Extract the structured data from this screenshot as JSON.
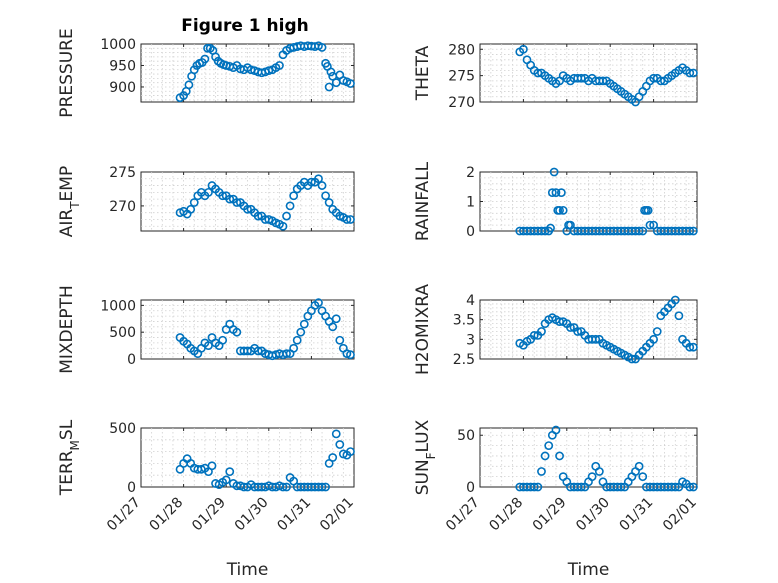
{
  "figure": {
    "title": "Figure 1 high",
    "marker_color": "#0072BD"
  },
  "chart_data": [
    {
      "type": "scatter",
      "ylabel": "PRESSURE",
      "ylim": [
        865,
        1000
      ],
      "yticks": [
        {
          "value": 900,
          "label": "900"
        },
        {
          "value": 950,
          "label": "950"
        },
        {
          "value": 1000,
          "label": "1000"
        }
      ],
      "xlim": [
        "01/27",
        "02/01"
      ],
      "xticks": [],
      "xlabel": "",
      "grid": true,
      "x": [
        "01/27 22:00",
        "01/28 00:00",
        "01/28 01:30",
        "01/28 03:00",
        "01/28 04:30",
        "01/28 06:00",
        "01/28 07:30",
        "01/28 09:00",
        "01/28 10:30",
        "01/28 12:00",
        "01/28 13:30",
        "01/28 15:00",
        "01/28 16:30",
        "01/28 18:00",
        "01/28 19:30",
        "01/28 21:00",
        "01/28 22:30",
        "01/29 00:00",
        "01/29 02:00",
        "01/29 04:00",
        "01/29 06:00",
        "01/29 08:00",
        "01/29 10:00",
        "01/29 12:00",
        "01/29 14:00",
        "01/29 16:00",
        "01/29 18:00",
        "01/29 20:00",
        "01/29 22:00",
        "01/30 00:00",
        "01/30 02:00",
        "01/30 04:00",
        "01/30 06:00",
        "01/30 08:00",
        "01/30 10:00",
        "01/30 12:00",
        "01/30 14:00",
        "01/30 16:00",
        "01/30 18:00",
        "01/30 20:00",
        "01/30 22:00",
        "01/31 00:00",
        "01/31 02:00",
        "01/31 04:00",
        "01/31 06:00",
        "01/31 08:00",
        "01/31 09:00",
        "01/31 10:00",
        "01/31 11:00",
        "01/31 12:00",
        "01/31 14:00",
        "01/31 16:00",
        "01/31 18:00",
        "01/31 20:00",
        "01/31 22:00"
      ],
      "values": [
        875,
        880,
        890,
        905,
        925,
        940,
        950,
        955,
        957,
        965,
        990,
        990,
        985,
        970,
        960,
        955,
        952,
        950,
        948,
        945,
        950,
        942,
        940,
        945,
        940,
        938,
        935,
        933,
        935,
        938,
        940,
        945,
        950,
        975,
        985,
        990,
        992,
        994,
        996,
        994,
        996,
        995,
        994,
        996,
        992,
        955,
        948,
        900,
        935,
        925,
        910,
        928,
        915,
        912,
        908
      ]
    },
    {
      "type": "scatter",
      "ylabel": "THETA",
      "ylim": [
        270,
        281
      ],
      "yticks": [
        {
          "value": 270,
          "label": "270"
        },
        {
          "value": 275,
          "label": "275"
        },
        {
          "value": 280,
          "label": "280"
        }
      ],
      "xlim": [
        "01/27",
        "02/01"
      ],
      "xticks": [],
      "xlabel": "",
      "grid": true,
      "x": [
        "01/27 22:00",
        "01/28 00:00",
        "01/28 02:00",
        "01/28 04:00",
        "01/28 06:00",
        "01/28 08:00",
        "01/28 10:00",
        "01/28 12:00",
        "01/28 14:00",
        "01/28 16:00",
        "01/28 18:00",
        "01/28 20:00",
        "01/28 22:00",
        "01/29 00:00",
        "01/29 02:00",
        "01/29 04:00",
        "01/29 06:00",
        "01/29 08:00",
        "01/29 10:00",
        "01/29 12:00",
        "01/29 14:00",
        "01/29 16:00",
        "01/29 18:00",
        "01/29 20:00",
        "01/29 22:00",
        "01/30 00:00",
        "01/30 02:00",
        "01/30 04:00",
        "01/30 06:00",
        "01/30 08:00",
        "01/30 10:00",
        "01/30 12:00",
        "01/30 14:00",
        "01/30 16:00",
        "01/30 18:00",
        "01/30 20:00",
        "01/30 22:00",
        "01/31 00:00",
        "01/31 02:00",
        "01/31 04:00",
        "01/31 06:00",
        "01/31 08:00",
        "01/31 10:00",
        "01/31 12:00",
        "01/31 14:00",
        "01/31 16:00",
        "01/31 18:00",
        "01/31 20:00",
        "01/31 22:00"
      ],
      "values": [
        279.5,
        280,
        278,
        277,
        276,
        275.5,
        275.5,
        275,
        274.5,
        274,
        273.5,
        274,
        275,
        274.5,
        274,
        274.5,
        274.5,
        274.5,
        274.5,
        274,
        274.5,
        274,
        274,
        274,
        274,
        273.5,
        273,
        272.5,
        272,
        271.5,
        271,
        270.5,
        270,
        271,
        272,
        273,
        274,
        274.5,
        274.5,
        274,
        274,
        274.5,
        275,
        275.5,
        276,
        276.5,
        276,
        275.5,
        275.5
      ]
    },
    {
      "type": "scatter",
      "ylabel": "AIR_TEMP",
      "ylim": [
        266.3,
        275
      ],
      "yticks": [
        {
          "value": 270,
          "label": "270"
        },
        {
          "value": 275,
          "label": "275"
        }
      ],
      "xlim": [
        "01/27",
        "02/01"
      ],
      "xticks": [],
      "xlabel": "",
      "grid": true,
      "x": [
        "01/27 22:00",
        "01/28 00:00",
        "01/28 02:00",
        "01/28 04:00",
        "01/28 06:00",
        "01/28 08:00",
        "01/28 10:00",
        "01/28 12:00",
        "01/28 14:00",
        "01/28 16:00",
        "01/28 18:00",
        "01/28 20:00",
        "01/28 22:00",
        "01/29 00:00",
        "01/29 02:00",
        "01/29 04:00",
        "01/29 06:00",
        "01/29 08:00",
        "01/29 10:00",
        "01/29 12:00",
        "01/29 14:00",
        "01/29 16:00",
        "01/29 18:00",
        "01/29 20:00",
        "01/29 22:00",
        "01/30 00:00",
        "01/30 02:00",
        "01/30 04:00",
        "01/30 06:00",
        "01/30 08:00",
        "01/30 10:00",
        "01/30 12:00",
        "01/30 14:00",
        "01/30 16:00",
        "01/30 18:00",
        "01/30 20:00",
        "01/30 22:00",
        "01/31 00:00",
        "01/31 02:00",
        "01/31 04:00",
        "01/31 06:00",
        "01/31 08:00",
        "01/31 10:00",
        "01/31 12:00",
        "01/31 14:00",
        "01/31 16:00",
        "01/31 18:00",
        "01/31 20:00",
        "01/31 22:00"
      ],
      "values": [
        269,
        269.2,
        268.8,
        269.5,
        270.5,
        271.5,
        272,
        271.5,
        272,
        273,
        272.5,
        272,
        271.5,
        271.5,
        271,
        271,
        270.5,
        270.5,
        270,
        269.5,
        269.5,
        269,
        268.5,
        268.5,
        268,
        268,
        267.8,
        267.5,
        267.3,
        267,
        268.5,
        270,
        271.5,
        272.5,
        273,
        273.5,
        273,
        273.5,
        273.5,
        274,
        273,
        271.5,
        270.5,
        269.5,
        269,
        268.5,
        268.3,
        268,
        268
      ]
    },
    {
      "type": "scatter",
      "ylabel": "RAINFALL",
      "ylim": [
        0,
        2
      ],
      "yticks": [
        {
          "value": 0,
          "label": "0"
        },
        {
          "value": 1,
          "label": "1"
        },
        {
          "value": 2,
          "label": "2"
        }
      ],
      "xlim": [
        "01/27",
        "02/01"
      ],
      "xticks": [],
      "xlabel": "",
      "grid": true,
      "x": [
        "01/27 22:00",
        "01/28 00:00",
        "01/28 02:00",
        "01/28 04:00",
        "01/28 06:00",
        "01/28 08:00",
        "01/28 10:00",
        "01/28 12:00",
        "01/28 14:00",
        "01/28 15:00",
        "01/28 16:00",
        "01/28 17:00",
        "01/28 18:00",
        "01/28 19:00",
        "01/28 20:00",
        "01/28 21:00",
        "01/28 22:00",
        "01/29 00:00",
        "01/29 01:00",
        "01/29 02:00",
        "01/29 04:00",
        "01/29 06:00",
        "01/29 08:00",
        "01/29 10:00",
        "01/29 12:00",
        "01/29 14:00",
        "01/29 16:00",
        "01/29 18:00",
        "01/29 20:00",
        "01/29 22:00",
        "01/30 00:00",
        "01/30 02:00",
        "01/30 04:00",
        "01/30 06:00",
        "01/30 08:00",
        "01/30 10:00",
        "01/30 12:00",
        "01/30 14:00",
        "01/30 16:00",
        "01/30 18:00",
        "01/30 19:00",
        "01/30 20:00",
        "01/30 21:00",
        "01/30 22:00",
        "01/31 00:00",
        "01/31 02:00",
        "01/31 04:00",
        "01/31 06:00",
        "01/31 08:00",
        "01/31 10:00",
        "01/31 12:00",
        "01/31 14:00",
        "01/31 16:00",
        "01/31 18:00",
        "01/31 20:00",
        "01/31 22:00"
      ],
      "values": [
        0,
        0,
        0,
        0,
        0,
        0,
        0,
        0,
        0,
        0.1,
        1.3,
        2.0,
        1.3,
        0.7,
        0.7,
        1.3,
        0.7,
        0,
        0.2,
        0.2,
        0,
        0,
        0,
        0,
        0,
        0,
        0,
        0,
        0,
        0,
        0,
        0,
        0,
        0,
        0,
        0,
        0,
        0,
        0,
        0,
        0.7,
        0.7,
        0.7,
        0.2,
        0.2,
        0,
        0,
        0,
        0,
        0,
        0,
        0,
        0,
        0,
        0,
        0
      ]
    },
    {
      "type": "scatter",
      "ylabel": "MIXDEPTH",
      "ylim": [
        0,
        1100
      ],
      "yticks": [
        {
          "value": 0,
          "label": "0"
        },
        {
          "value": 500,
          "label": "500"
        },
        {
          "value": 1000,
          "label": "1000"
        }
      ],
      "xlim": [
        "01/27",
        "02/01"
      ],
      "xticks": [],
      "xlabel": "",
      "grid": true,
      "x": [
        "01/27 22:00",
        "01/28 00:00",
        "01/28 02:00",
        "01/28 04:00",
        "01/28 06:00",
        "01/28 08:00",
        "01/28 10:00",
        "01/28 12:00",
        "01/28 14:00",
        "01/28 16:00",
        "01/28 18:00",
        "01/28 20:00",
        "01/28 22:00",
        "01/29 00:00",
        "01/29 02:00",
        "01/29 04:00",
        "01/29 06:00",
        "01/29 08:00",
        "01/29 10:00",
        "01/29 12:00",
        "01/29 14:00",
        "01/29 16:00",
        "01/29 18:00",
        "01/29 20:00",
        "01/29 22:00",
        "01/30 00:00",
        "01/30 02:00",
        "01/30 04:00",
        "01/30 06:00",
        "01/30 08:00",
        "01/30 10:00",
        "01/30 12:00",
        "01/30 14:00",
        "01/30 16:00",
        "01/30 18:00",
        "01/30 20:00",
        "01/30 22:00",
        "01/31 00:00",
        "01/31 02:00",
        "01/31 04:00",
        "01/31 06:00",
        "01/31 08:00",
        "01/31 10:00",
        "01/31 12:00",
        "01/31 14:00",
        "01/31 16:00",
        "01/31 18:00",
        "01/31 20:00",
        "01/31 22:00"
      ],
      "values": [
        400,
        330,
        280,
        200,
        150,
        100,
        200,
        300,
        250,
        400,
        300,
        250,
        350,
        550,
        650,
        550,
        500,
        150,
        150,
        150,
        150,
        200,
        150,
        150,
        100,
        80,
        60,
        80,
        100,
        80,
        100,
        100,
        200,
        350,
        500,
        650,
        800,
        900,
        1000,
        1050,
        900,
        800,
        700,
        600,
        750,
        350,
        200,
        100,
        80
      ]
    },
    {
      "type": "scatter",
      "ylabel": "H2OMIXRA",
      "ylim": [
        2.5,
        4
      ],
      "yticks": [
        {
          "value": 2.5,
          "label": "2.5"
        },
        {
          "value": 3,
          "label": "3"
        },
        {
          "value": 3.5,
          "label": "3.5"
        },
        {
          "value": 4,
          "label": "4"
        }
      ],
      "xlim": [
        "01/27",
        "02/01"
      ],
      "xticks": [],
      "xlabel": "",
      "grid": true,
      "x": [
        "01/27 22:00",
        "01/28 00:00",
        "01/28 02:00",
        "01/28 04:00",
        "01/28 06:00",
        "01/28 08:00",
        "01/28 10:00",
        "01/28 12:00",
        "01/28 14:00",
        "01/28 16:00",
        "01/28 18:00",
        "01/28 20:00",
        "01/28 22:00",
        "01/29 00:00",
        "01/29 02:00",
        "01/29 04:00",
        "01/29 06:00",
        "01/29 08:00",
        "01/29 10:00",
        "01/29 12:00",
        "01/29 14:00",
        "01/29 16:00",
        "01/29 18:00",
        "01/29 20:00",
        "01/29 22:00",
        "01/30 00:00",
        "01/30 02:00",
        "01/30 04:00",
        "01/30 06:00",
        "01/30 08:00",
        "01/30 10:00",
        "01/30 12:00",
        "01/30 14:00",
        "01/30 16:00",
        "01/30 18:00",
        "01/30 20:00",
        "01/30 22:00",
        "01/31 00:00",
        "01/31 02:00",
        "01/31 04:00",
        "01/31 06:00",
        "01/31 08:00",
        "01/31 10:00",
        "01/31 12:00",
        "01/31 14:00",
        "01/31 16:00",
        "01/31 18:00",
        "01/31 20:00",
        "01/31 22:00"
      ],
      "values": [
        2.9,
        2.85,
        2.95,
        3.0,
        3.1,
        3.1,
        3.2,
        3.4,
        3.5,
        3.55,
        3.5,
        3.45,
        3.45,
        3.4,
        3.3,
        3.3,
        3.2,
        3.2,
        3.1,
        3.0,
        3.0,
        3.0,
        3.0,
        2.9,
        2.85,
        2.8,
        2.75,
        2.7,
        2.65,
        2.6,
        2.55,
        2.5,
        2.5,
        2.6,
        2.7,
        2.8,
        2.9,
        3.0,
        3.2,
        3.6,
        3.7,
        3.8,
        3.9,
        4.0,
        3.6,
        3.0,
        2.9,
        2.8,
        2.8
      ]
    },
    {
      "type": "scatter",
      "ylabel": "TERR_MSL",
      "ylim": [
        0,
        500
      ],
      "yticks": [
        {
          "value": 0,
          "label": "0"
        },
        {
          "value": 500,
          "label": "500"
        }
      ],
      "xlim": [
        "01/27",
        "02/01"
      ],
      "xticks": [
        "01/27",
        "01/28",
        "01/29",
        "01/30",
        "01/31",
        "02/01"
      ],
      "xlabel": "Time",
      "grid": true,
      "x": [
        "01/27 22:00",
        "01/28 00:00",
        "01/28 02:00",
        "01/28 04:00",
        "01/28 06:00",
        "01/28 08:00",
        "01/28 10:00",
        "01/28 12:00",
        "01/28 14:00",
        "01/28 16:00",
        "01/28 18:00",
        "01/28 20:00",
        "01/28 22:00",
        "01/29 00:00",
        "01/29 02:00",
        "01/29 04:00",
        "01/29 06:00",
        "01/29 08:00",
        "01/29 10:00",
        "01/29 12:00",
        "01/29 14:00",
        "01/29 16:00",
        "01/29 18:00",
        "01/29 20:00",
        "01/29 22:00",
        "01/30 00:00",
        "01/30 02:00",
        "01/30 04:00",
        "01/30 06:00",
        "01/30 08:00",
        "01/30 10:00",
        "01/30 12:00",
        "01/30 14:00",
        "01/30 16:00",
        "01/30 18:00",
        "01/30 20:00",
        "01/30 22:00",
        "01/31 00:00",
        "01/31 02:00",
        "01/31 04:00",
        "01/31 06:00",
        "01/31 08:00",
        "01/31 10:00",
        "01/31 12:00",
        "01/31 14:00",
        "01/31 16:00",
        "01/31 18:00",
        "01/31 20:00",
        "01/31 22:00"
      ],
      "values": [
        150,
        200,
        240,
        200,
        160,
        150,
        150,
        160,
        130,
        180,
        30,
        20,
        40,
        60,
        130,
        30,
        10,
        10,
        0,
        0,
        20,
        0,
        0,
        0,
        0,
        10,
        0,
        0,
        10,
        0,
        0,
        80,
        50,
        0,
        0,
        0,
        0,
        0,
        0,
        0,
        0,
        0,
        200,
        250,
        450,
        360,
        280,
        270,
        300
      ]
    },
    {
      "type": "scatter",
      "ylabel": "SUN_FLUX",
      "ylim": [
        0,
        57
      ],
      "yticks": [
        {
          "value": 0,
          "label": "0"
        },
        {
          "value": 50,
          "label": "50"
        }
      ],
      "xlim": [
        "01/27",
        "02/01"
      ],
      "xticks": [
        "01/27",
        "01/28",
        "01/29",
        "01/30",
        "01/31",
        "02/01"
      ],
      "xlabel": "Time",
      "grid": true,
      "x": [
        "01/27 22:00",
        "01/28 00:00",
        "01/28 02:00",
        "01/28 04:00",
        "01/28 06:00",
        "01/28 08:00",
        "01/28 10:00",
        "01/28 12:00",
        "01/28 14:00",
        "01/28 16:00",
        "01/28 18:00",
        "01/28 20:00",
        "01/28 22:00",
        "01/29 00:00",
        "01/29 02:00",
        "01/29 04:00",
        "01/29 06:00",
        "01/29 08:00",
        "01/29 10:00",
        "01/29 12:00",
        "01/29 14:00",
        "01/29 16:00",
        "01/29 18:00",
        "01/29 20:00",
        "01/29 22:00",
        "01/30 00:00",
        "01/30 02:00",
        "01/30 04:00",
        "01/30 06:00",
        "01/30 08:00",
        "01/30 10:00",
        "01/30 12:00",
        "01/30 14:00",
        "01/30 16:00",
        "01/30 18:00",
        "01/30 20:00",
        "01/30 22:00",
        "01/31 00:00",
        "01/31 02:00",
        "01/31 04:00",
        "01/31 06:00",
        "01/31 08:00",
        "01/31 10:00",
        "01/31 12:00",
        "01/31 14:00",
        "01/31 16:00",
        "01/31 18:00",
        "01/31 20:00",
        "01/31 22:00"
      ],
      "values": [
        0,
        0,
        0,
        0,
        0,
        0,
        15,
        30,
        40,
        50,
        55,
        30,
        10,
        5,
        0,
        0,
        0,
        0,
        0,
        5,
        10,
        20,
        15,
        5,
        0,
        0,
        0,
        0,
        0,
        0,
        5,
        10,
        15,
        20,
        10,
        0,
        0,
        0,
        0,
        0,
        0,
        0,
        0,
        0,
        0,
        5,
        3,
        0,
        0
      ]
    }
  ]
}
